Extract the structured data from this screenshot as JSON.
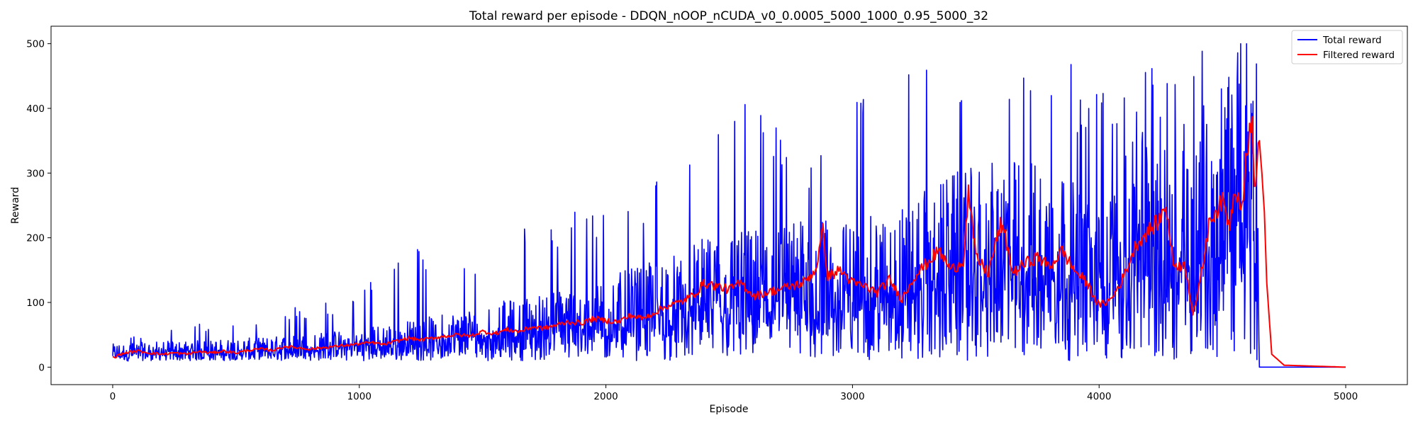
{
  "chart_data": {
    "type": "line",
    "title": "Total reward per episode - DDQN_nOOP_nCUDA_v0_0.0005_5000_1000_0.95_5000_32",
    "xlabel": "Episode",
    "ylabel": "Reward",
    "xlim": [
      -250,
      5250
    ],
    "ylim": [
      -27,
      527
    ],
    "x_ticks": [
      0,
      1000,
      2000,
      3000,
      4000,
      5000
    ],
    "y_ticks": [
      0,
      100,
      200,
      300,
      400,
      500
    ],
    "legend_position": "top-right",
    "grid": false,
    "series": [
      {
        "name": "Total reward",
        "color": "#0000ff",
        "description_points": {
          "x": [
            0,
            200,
            400,
            600,
            800,
            1000,
            1200,
            1400,
            1600,
            1800,
            2000,
            2200,
            2400,
            2600,
            2800,
            3000,
            3200,
            3400,
            3600,
            3800,
            4000,
            4200,
            4400,
            4600,
            4640,
            4650,
            5000
          ],
          "mean": [
            18,
            20,
            21,
            23,
            26,
            30,
            36,
            44,
            52,
            60,
            70,
            82,
            100,
            108,
            115,
            112,
            125,
            150,
            160,
            165,
            120,
            200,
            180,
            270,
            250,
            0,
            0
          ],
          "max": [
            45,
            60,
            72,
            80,
            100,
            115,
            195,
            180,
            210,
            240,
            260,
            300,
            350,
            430,
            350,
            410,
            500,
            500,
            500,
            500,
            460,
            500,
            500,
            500,
            500,
            0,
            0
          ]
        }
      },
      {
        "name": "Filtered reward",
        "color": "#ff0000",
        "points": {
          "x": [
            0,
            50,
            100,
            150,
            200,
            250,
            300,
            350,
            400,
            450,
            500,
            550,
            600,
            650,
            700,
            750,
            800,
            850,
            900,
            950,
            1000,
            1050,
            1100,
            1150,
            1200,
            1250,
            1300,
            1350,
            1400,
            1450,
            1500,
            1550,
            1600,
            1650,
            1700,
            1750,
            1800,
            1850,
            1900,
            1950,
            2000,
            2050,
            2100,
            2150,
            2200,
            2250,
            2300,
            2350,
            2400,
            2450,
            2500,
            2550,
            2600,
            2650,
            2700,
            2750,
            2800,
            2850,
            2880,
            2900,
            2950,
            3000,
            3050,
            3100,
            3150,
            3200,
            3250,
            3300,
            3350,
            3400,
            3450,
            3470,
            3500,
            3550,
            3600,
            3620,
            3650,
            3700,
            3750,
            3800,
            3850,
            3900,
            3950,
            4000,
            4050,
            4100,
            4150,
            4200,
            4250,
            4270,
            4300,
            4350,
            4380,
            4400,
            4450,
            4500,
            4530,
            4550,
            4580,
            4600,
            4620,
            4630,
            4650,
            4660,
            4670,
            4680,
            4700,
            4750,
            5000
          ],
          "y": [
            15,
            22,
            25,
            22,
            20,
            22,
            20,
            24,
            22,
            25,
            22,
            26,
            28,
            26,
            32,
            30,
            28,
            30,
            32,
            34,
            36,
            38,
            35,
            40,
            45,
            42,
            45,
            48,
            50,
            48,
            55,
            52,
            58,
            55,
            62,
            60,
            65,
            70,
            68,
            75,
            72,
            70,
            80,
            75,
            85,
            95,
            100,
            110,
            130,
            125,
            120,
            130,
            110,
            115,
            120,
            125,
            130,
            150,
            210,
            140,
            150,
            130,
            125,
            115,
            135,
            105,
            140,
            160,
            180,
            150,
            165,
            270,
            170,
            145,
            220,
            200,
            145,
            160,
            170,
            155,
            180,
            150,
            130,
            95,
            105,
            140,
            190,
            210,
            230,
            255,
            160,
            155,
            85,
            110,
            230,
            255,
            220,
            280,
            250,
            340,
            375,
            280,
            350,
            300,
            240,
            130,
            20,
            3,
            0
          ]
        }
      }
    ]
  }
}
